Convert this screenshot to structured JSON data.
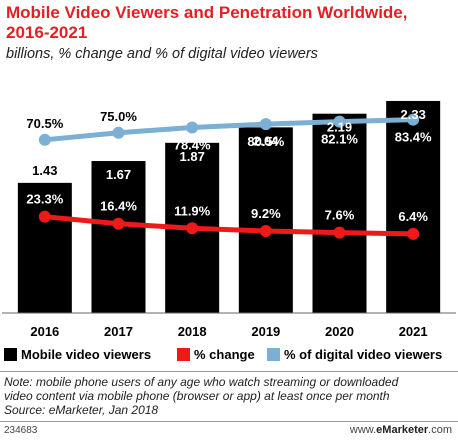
{
  "header": {
    "title": "Mobile Video Viewers and Penetration Worldwide, 2016-2021",
    "subtitle": "billions, % change and % of digital video viewers"
  },
  "colors": {
    "bars": "#000000",
    "change_line": "#ee1a1a",
    "penetration_line": "#7bafd4"
  },
  "chart_data": {
    "type": "bar",
    "categories": [
      "2016",
      "2017",
      "2018",
      "2019",
      "2020",
      "2021"
    ],
    "series": [
      {
        "name": "Mobile video viewers",
        "type": "bar",
        "values": [
          1.43,
          1.67,
          1.87,
          2.04,
          2.19,
          2.33
        ],
        "labels": [
          "1.43",
          "1.67",
          "1.87",
          "2.04",
          "2.19",
          "2.33"
        ]
      },
      {
        "name": "% change",
        "type": "line",
        "values": [
          23.3,
          16.4,
          11.9,
          9.2,
          7.6,
          6.4
        ],
        "labels": [
          "23.3%",
          "16.4%",
          "11.9%",
          "9.2%",
          "7.6%",
          "6.4%"
        ]
      },
      {
        "name": "% of digital video viewers",
        "type": "line",
        "values": [
          70.5,
          75.0,
          78.4,
          80.5,
          82.1,
          83.4
        ],
        "labels": [
          "70.5%",
          "75.0%",
          "78.4%",
          "80.5%",
          "82.1%",
          "83.4%"
        ]
      }
    ],
    "legend_position": "bottom"
  },
  "legend": [
    {
      "label": "Mobile video viewers"
    },
    {
      "label": "% change"
    },
    {
      "label": "% of digital video viewers"
    }
  ],
  "footer": {
    "note_line1": "Note: mobile phone users of any age who watch streaming or downloaded",
    "note_line2": "video content via mobile phone (browser or app) at least once per month",
    "source": "Source: eMarketer, Jan 2018",
    "chart_id": "234683",
    "brand_prefix": "www.",
    "brand_name": "eMarketer",
    "brand_suffix": ".com"
  }
}
